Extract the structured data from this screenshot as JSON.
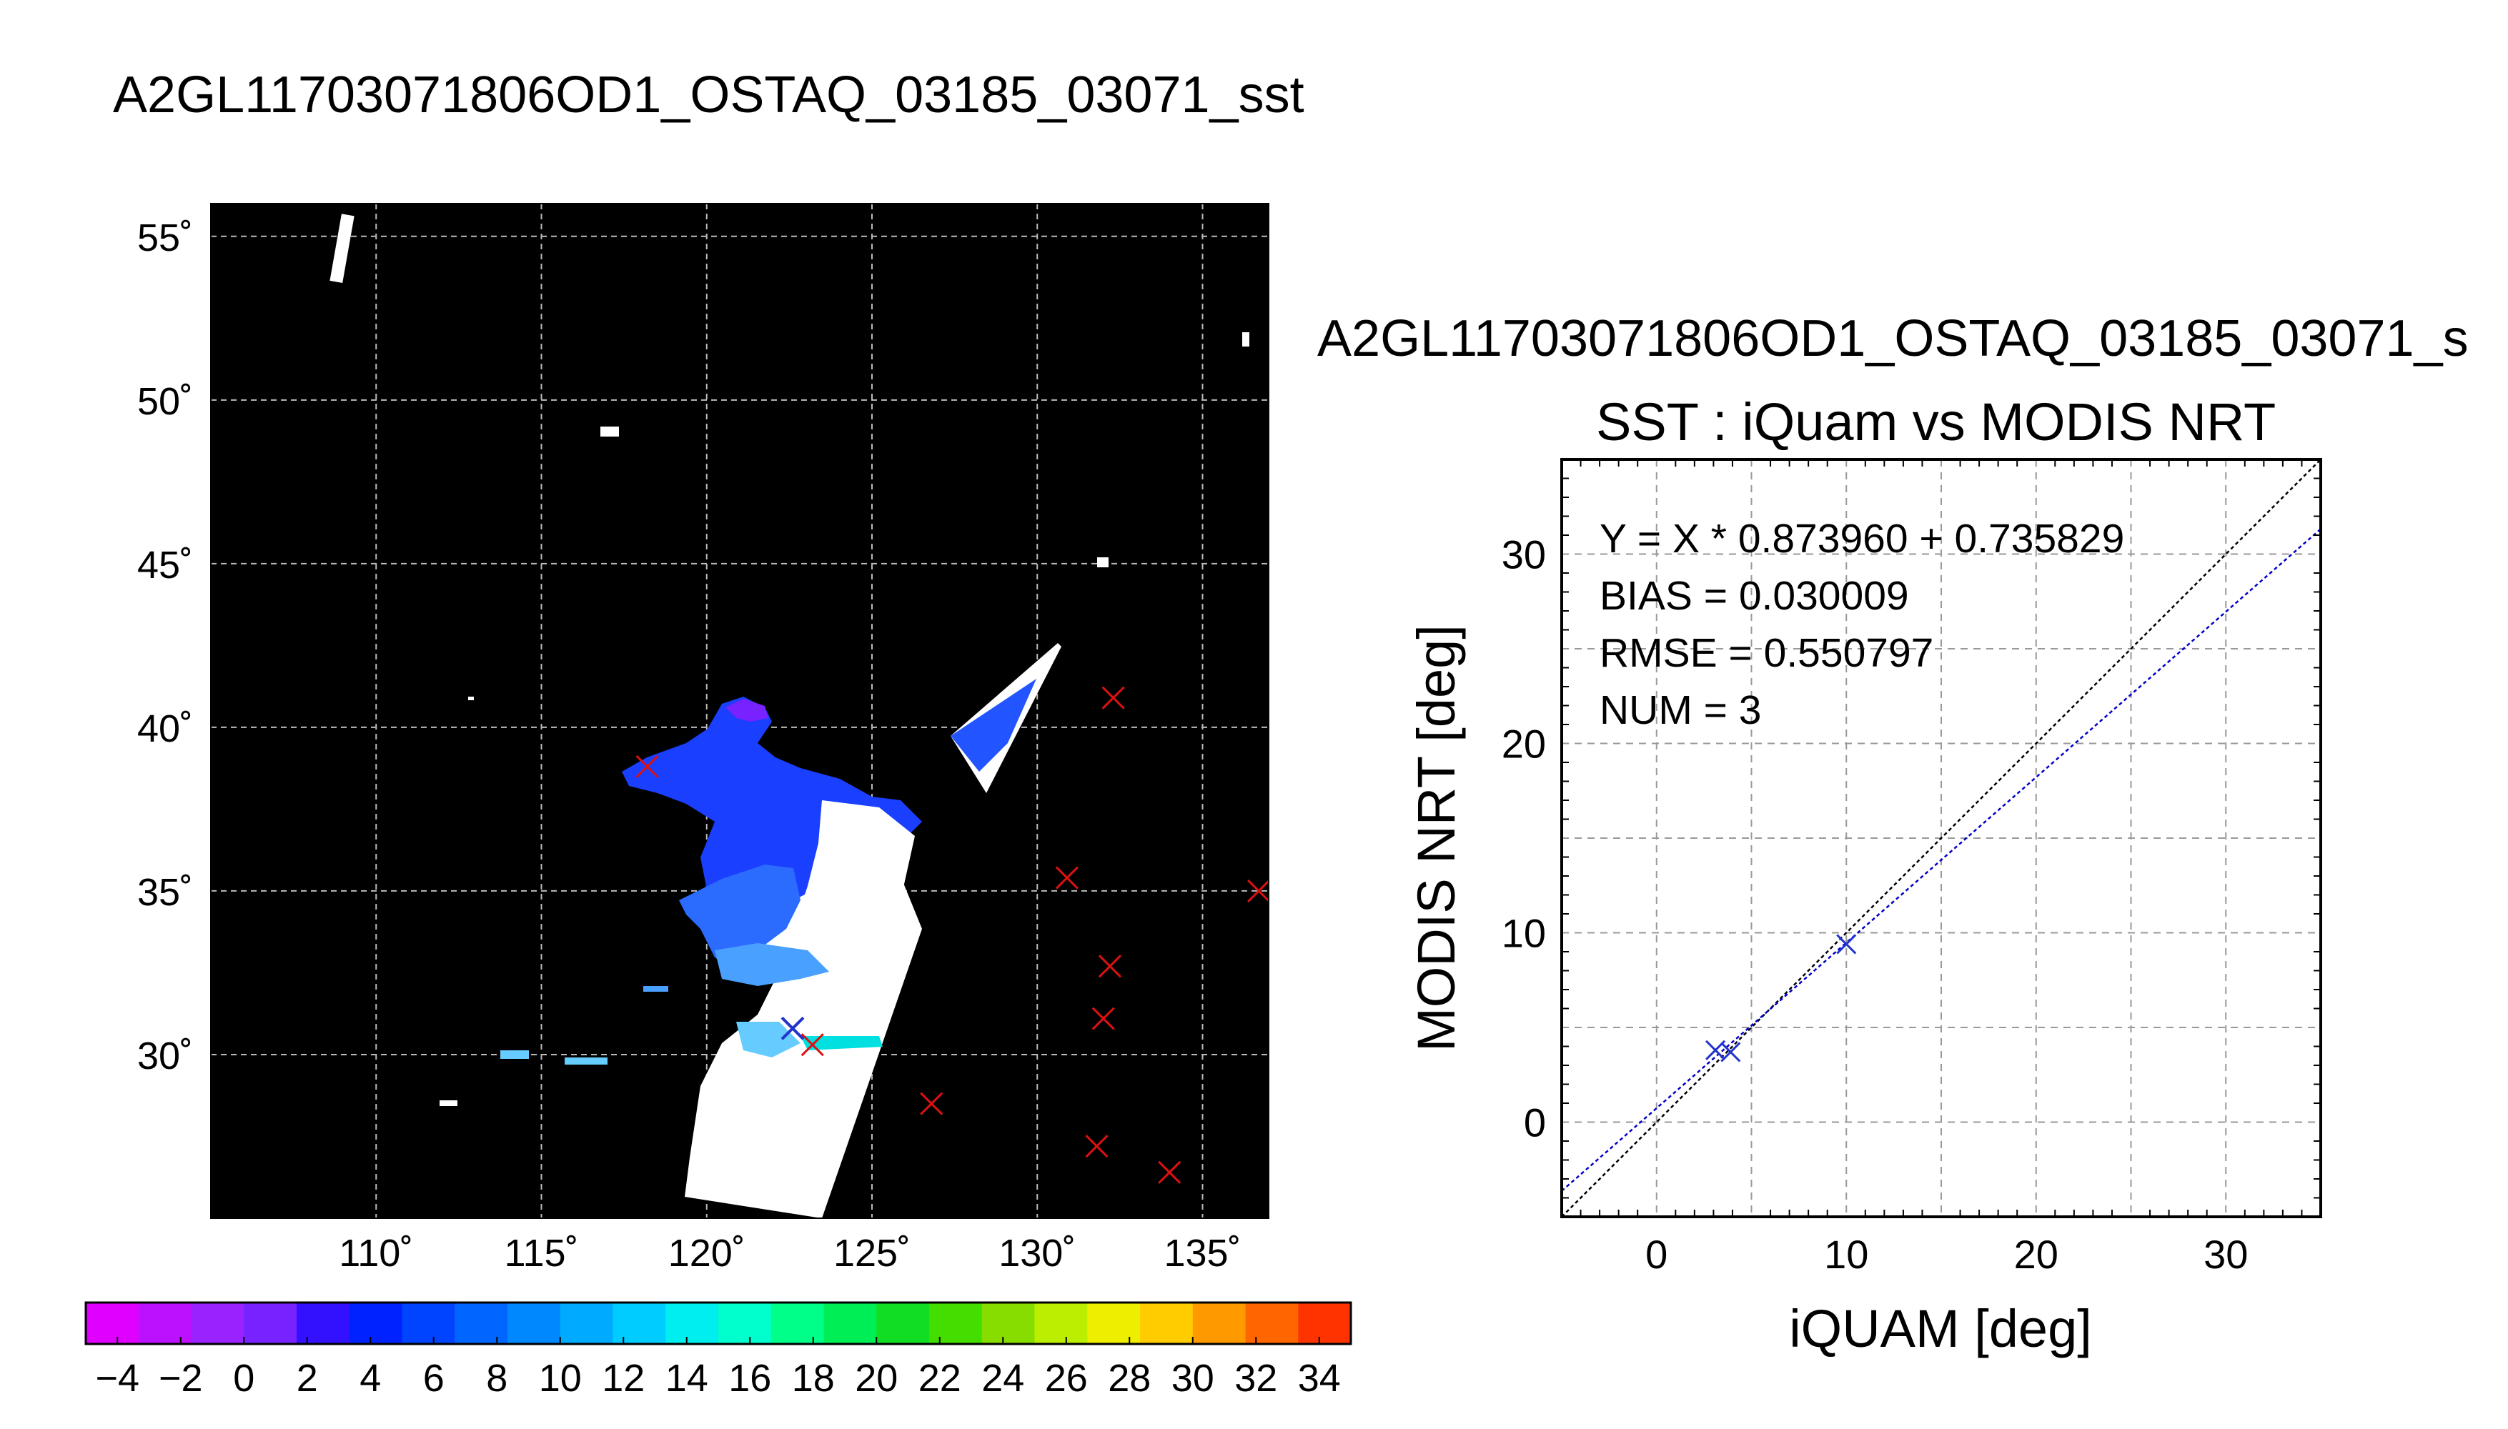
{
  "map_title": "A2GL11703071806OD1_OSTAQ_03185_03071_sst",
  "scatter_title_1": "A2GL11703071806OD1_OSTAQ_03185_03071_s",
  "scatter_title_2": "SST : iQuam vs MODIS NRT",
  "chart_data": [
    {
      "type": "heatmap",
      "lon_ticks": [
        "110˚",
        "115˚",
        "120˚",
        "125˚",
        "130˚",
        "135˚"
      ],
      "lat_ticks": [
        "55˚",
        "50˚",
        "45˚",
        "40˚",
        "35˚",
        "30˚"
      ],
      "lon_values": [
        110,
        115,
        120,
        125,
        130,
        135
      ],
      "lat_values": [
        55,
        50,
        45,
        40,
        35,
        30
      ],
      "xlim": [
        105,
        137
      ],
      "ylim": [
        25,
        56
      ],
      "grid": true,
      "background": "#000000",
      "iquam_points_red": [
        {
          "lon": 118.2,
          "lat": 38.8
        },
        {
          "lon": 132.3,
          "lat": 40.9
        },
        {
          "lon": 130.9,
          "lat": 35.4
        },
        {
          "lon": 136.7,
          "lat": 35.0
        },
        {
          "lon": 132.2,
          "lat": 32.7
        },
        {
          "lon": 132.0,
          "lat": 31.1
        },
        {
          "lon": 123.2,
          "lat": 30.3
        },
        {
          "lon": 126.8,
          "lat": 28.5
        },
        {
          "lon": 131.8,
          "lat": 27.2
        },
        {
          "lon": 134.0,
          "lat": 26.4
        }
      ],
      "iquam_points_blue": [
        {
          "lon": 122.6,
          "lat": 30.8
        }
      ],
      "colorbar": {
        "ticks": [
          "−4",
          "−2",
          "0",
          "2",
          "4",
          "6",
          "8",
          "10",
          "12",
          "14",
          "16",
          "18",
          "20",
          "22",
          "24",
          "26",
          "28",
          "30",
          "32",
          "34"
        ],
        "min": -5,
        "max": 35,
        "step": 2,
        "colors": [
          "#e000ff",
          "#bb11ff",
          "#9a22ff",
          "#7722ff",
          "#3311ff",
          "#0022ff",
          "#0044ff",
          "#0066ff",
          "#0088ff",
          "#00aaff",
          "#00ccff",
          "#00eeee",
          "#00ffcc",
          "#00ff88",
          "#00ee55",
          "#11dd22",
          "#44dd00",
          "#88dd00",
          "#bbee00",
          "#eeee00",
          "#ffcc00",
          "#ff9900",
          "#ff6600",
          "#ff3300"
        ]
      }
    },
    {
      "type": "scatter",
      "title": "SST : iQuam vs MODIS NRT",
      "xlabel": "iQUAM [deg]",
      "ylabel": "MODIS NRT [deg]",
      "xlim": [
        -5,
        35
      ],
      "ylim": [
        -5,
        35
      ],
      "xticks": [
        0,
        10,
        20,
        30
      ],
      "yticks": [
        0,
        10,
        20,
        30
      ],
      "grid": true,
      "annotations": [
        "Y = X * 0.873960 + 0.735829",
        "BIAS = 0.030009",
        "RMSE = 0.550797",
        "NUM = 3"
      ],
      "points": [
        {
          "x": 3.1,
          "y": 3.8
        },
        {
          "x": 3.9,
          "y": 3.7
        },
        {
          "x": 10.0,
          "y": 9.4
        }
      ],
      "fit": {
        "slope": 0.87396,
        "intercept": 0.735829,
        "color": "#0000cc"
      },
      "identity_line_color": "#000000"
    }
  ]
}
